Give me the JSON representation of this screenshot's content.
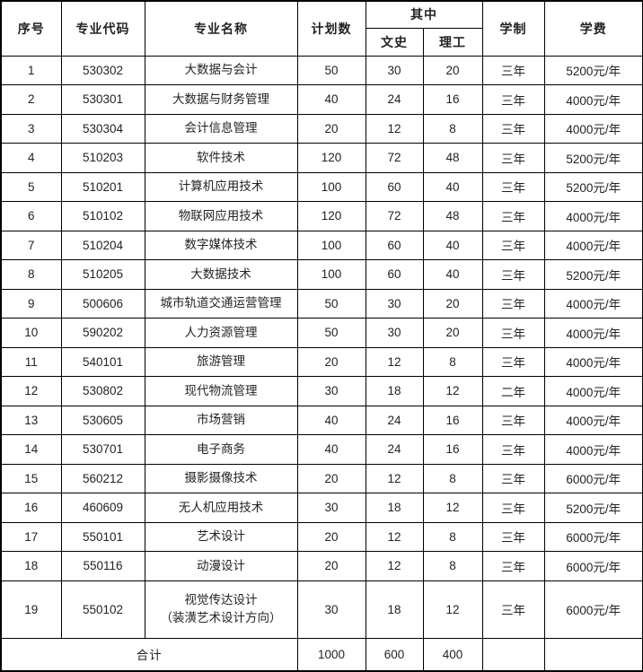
{
  "colors": {
    "background": "#ffffff",
    "border": "#000000",
    "text": "#232323"
  },
  "table": {
    "header": {
      "col_no": "序号",
      "col_code": "专业代码",
      "col_name": "专业名称",
      "col_plan": "计划数",
      "col_among": "其中",
      "col_liberal_arts": "文史",
      "col_science": "理工",
      "col_duration": "学制",
      "col_tuition": "学费"
    },
    "rows": [
      {
        "no": "1",
        "code": "530302",
        "name": "大数据与会计",
        "plan": "50",
        "liberal": "30",
        "science": "20",
        "duration": "三年",
        "tuition": "5200元/年"
      },
      {
        "no": "2",
        "code": "530301",
        "name": "大数据与财务管理",
        "plan": "40",
        "liberal": "24",
        "science": "16",
        "duration": "三年",
        "tuition": "4000元/年"
      },
      {
        "no": "3",
        "code": "530304",
        "name": "会计信息管理",
        "plan": "20",
        "liberal": "12",
        "science": "8",
        "duration": "三年",
        "tuition": "4000元/年"
      },
      {
        "no": "4",
        "code": "510203",
        "name": "软件技术",
        "plan": "120",
        "liberal": "72",
        "science": "48",
        "duration": "三年",
        "tuition": "5200元/年"
      },
      {
        "no": "5",
        "code": "510201",
        "name": "计算机应用技术",
        "plan": "100",
        "liberal": "60",
        "science": "40",
        "duration": "三年",
        "tuition": "5200元/年"
      },
      {
        "no": "6",
        "code": "510102",
        "name": "物联网应用技术",
        "plan": "120",
        "liberal": "72",
        "science": "48",
        "duration": "三年",
        "tuition": "4000元/年"
      },
      {
        "no": "7",
        "code": "510204",
        "name": "数字媒体技术",
        "plan": "100",
        "liberal": "60",
        "science": "40",
        "duration": "三年",
        "tuition": "4000元/年"
      },
      {
        "no": "8",
        "code": "510205",
        "name": "大数据技术",
        "plan": "100",
        "liberal": "60",
        "science": "40",
        "duration": "三年",
        "tuition": "5200元/年"
      },
      {
        "no": "9",
        "code": "500606",
        "name": "城市轨道交通运营管理",
        "plan": "50",
        "liberal": "30",
        "science": "20",
        "duration": "三年",
        "tuition": "4000元/年"
      },
      {
        "no": "10",
        "code": "590202",
        "name": "人力资源管理",
        "plan": "50",
        "liberal": "30",
        "science": "20",
        "duration": "三年",
        "tuition": "4000元/年"
      },
      {
        "no": "11",
        "code": "540101",
        "name": "旅游管理",
        "plan": "20",
        "liberal": "12",
        "science": "8",
        "duration": "三年",
        "tuition": "4000元/年"
      },
      {
        "no": "12",
        "code": "530802",
        "name": "现代物流管理",
        "plan": "30",
        "liberal": "18",
        "science": "12",
        "duration": "二年",
        "tuition": "4000元/年"
      },
      {
        "no": "13",
        "code": "530605",
        "name": "市场营销",
        "plan": "40",
        "liberal": "24",
        "science": "16",
        "duration": "三年",
        "tuition": "4000元/年"
      },
      {
        "no": "14",
        "code": "530701",
        "name": "电子商务",
        "plan": "40",
        "liberal": "24",
        "science": "16",
        "duration": "三年",
        "tuition": "4000元/年"
      },
      {
        "no": "15",
        "code": "560212",
        "name": "摄影摄像技术",
        "plan": "20",
        "liberal": "12",
        "science": "8",
        "duration": "三年",
        "tuition": "6000元/年"
      },
      {
        "no": "16",
        "code": "460609",
        "name": "无人机应用技术",
        "plan": "30",
        "liberal": "18",
        "science": "12",
        "duration": "三年",
        "tuition": "5200元/年"
      },
      {
        "no": "17",
        "code": "550101",
        "name": "艺术设计",
        "plan": "20",
        "liberal": "12",
        "science": "8",
        "duration": "三年",
        "tuition": "6000元/年"
      },
      {
        "no": "18",
        "code": "550116",
        "name": "动漫设计",
        "plan": "20",
        "liberal": "12",
        "science": "8",
        "duration": "三年",
        "tuition": "6000元/年"
      },
      {
        "no": "19",
        "code": "550102",
        "name": "视觉传达设计\n（装潢艺术设计方向）",
        "plan": "30",
        "liberal": "18",
        "science": "12",
        "duration": "三年",
        "tuition": "6000元/年",
        "tall": true
      }
    ],
    "total": {
      "label": "合计",
      "plan": "1000",
      "liberal": "600",
      "science": "400",
      "duration": "",
      "tuition": ""
    }
  }
}
